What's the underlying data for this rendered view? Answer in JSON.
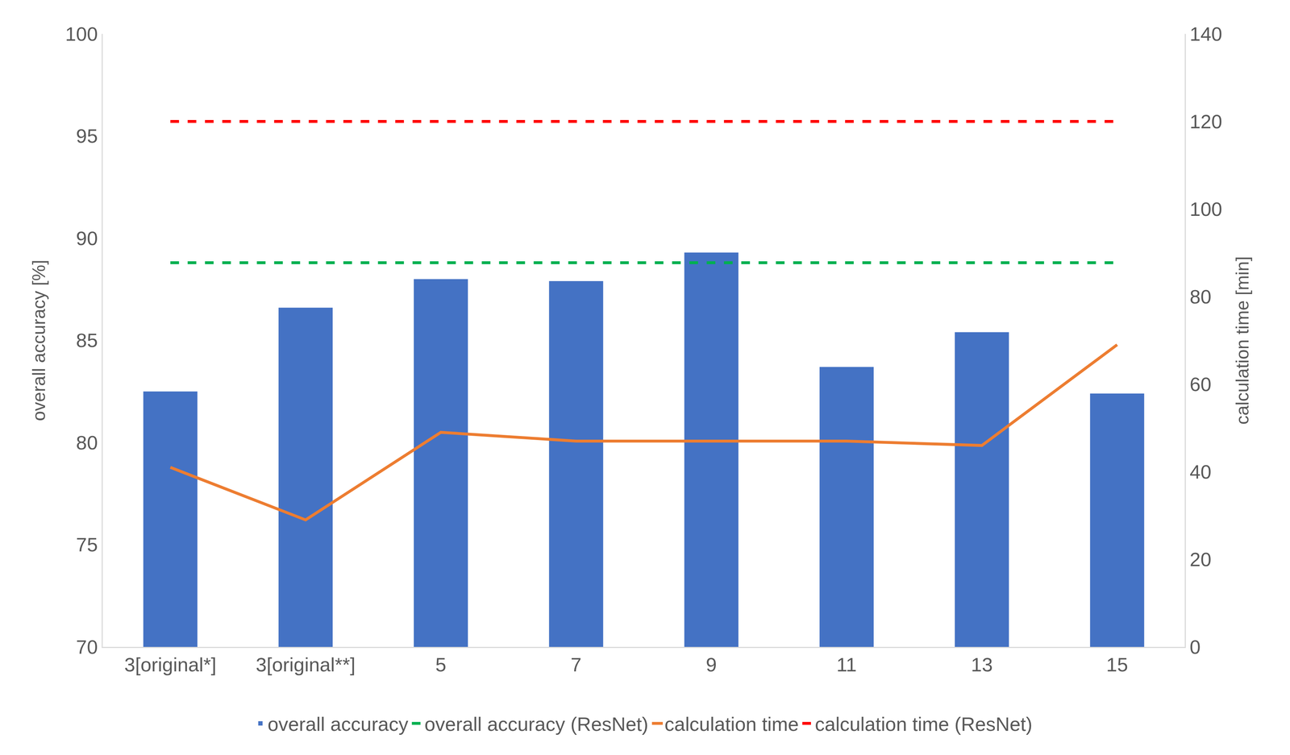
{
  "chart_data": {
    "type": "bar",
    "categories": [
      "3[original*]",
      "3[original**]",
      "5",
      "7",
      "9",
      "11",
      "13",
      "15"
    ],
    "y_label": "overall accuracy [%]",
    "y2_label": "calculation time [min]",
    "ylim": [
      70,
      100
    ],
    "yticks": [
      70,
      75,
      80,
      85,
      90,
      95,
      100
    ],
    "y2lim": [
      0,
      140
    ],
    "y2ticks": [
      0,
      20,
      40,
      60,
      80,
      100,
      120,
      140
    ],
    "grid": false,
    "legend": "bottom",
    "series": [
      {
        "name": "overall accuracy",
        "type": "bar",
        "color": "#4472c4",
        "values": [
          82.5,
          86.6,
          88.0,
          87.9,
          89.3,
          83.7,
          85.4,
          82.4
        ]
      },
      {
        "name": "overall accuracy (ResNet)",
        "type": "line",
        "line_style": "dash",
        "color": "#00b050",
        "values": [
          88.8,
          88.8,
          88.8,
          88.8,
          88.8,
          88.8,
          88.8,
          88.8
        ]
      },
      {
        "name": "calculation time",
        "type": "line",
        "line_style": "solid",
        "color": "#ed7d31",
        "axis": "y2",
        "values": [
          41,
          29,
          49,
          47,
          47,
          47,
          46,
          69
        ]
      },
      {
        "name": "calculation time (ResNet)",
        "type": "line",
        "line_style": "dash",
        "color": "#ff0000",
        "axis": "y2",
        "values": [
          120,
          120,
          120,
          120,
          120,
          120,
          120,
          120
        ]
      }
    ]
  }
}
